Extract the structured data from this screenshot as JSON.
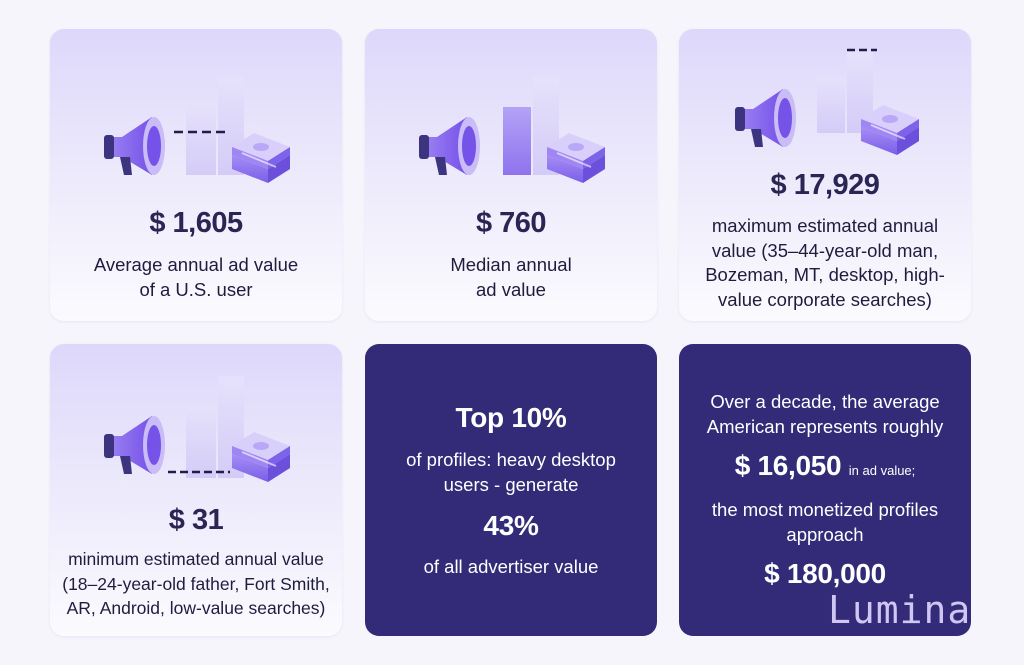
{
  "cards": [
    {
      "value": "$ 1,605",
      "caption_lines": [
        "Average annual ad value",
        "of a U.S. user"
      ]
    },
    {
      "value": "$ 760",
      "caption_lines": [
        "Median annual",
        "ad value"
      ]
    },
    {
      "value": "$ 17,929",
      "caption_lines": [
        "maximum estimated annual",
        "value (35–44-year-old man,",
        "Bozeman, MT, desktop, high-",
        "value corporate searches)"
      ]
    },
    {
      "value": "$ 31",
      "caption_lines": [
        "minimum estimated annual value",
        "(18–24-year-old father, Fort Smith,",
        "AR, Android, low-value searches)"
      ]
    }
  ],
  "top10": {
    "headline": "Top 10%",
    "line1": "of profiles: heavy desktop",
    "line2": "users - generate",
    "percent": "43%",
    "line3": "of all advertiser value"
  },
  "decade": {
    "line1": "Over a decade, the average",
    "line2": "American represents roughly",
    "value": "$ 16,050",
    "value_suffix": "in ad value;",
    "line3": "the most monetized profiles",
    "line4": "approach",
    "max_value": "$ 180,000"
  },
  "watermark": "Lumina",
  "colors": {
    "accent": "#7a5cf0",
    "dark_card": "#332a78",
    "icon_dark": "#3d3480"
  }
}
